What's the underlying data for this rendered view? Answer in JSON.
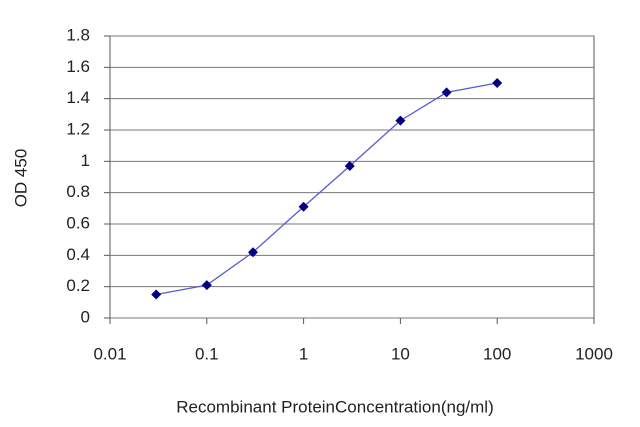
{
  "chart_data": {
    "type": "line",
    "x_label": "Recombinant ProteinConcentration(ng/ml)",
    "y_label": "OD 450",
    "x": [
      0.03,
      0.1,
      0.3,
      1,
      3,
      10,
      30,
      100
    ],
    "values": [
      0.15,
      0.21,
      0.42,
      0.71,
      0.97,
      1.26,
      1.44,
      1.5
    ],
    "color": "#5a5ad6",
    "marker_color": "#000080",
    "xlog": true,
    "xlim": [
      0.01,
      1000
    ],
    "xticks": [
      0.01,
      0.1,
      1,
      10,
      100,
      1000
    ],
    "ylim": [
      0,
      1.8
    ],
    "yticks": [
      0,
      0.2,
      0.4,
      0.6,
      0.8,
      1,
      1.2,
      1.4,
      1.6,
      1.8
    ],
    "grid": true
  }
}
